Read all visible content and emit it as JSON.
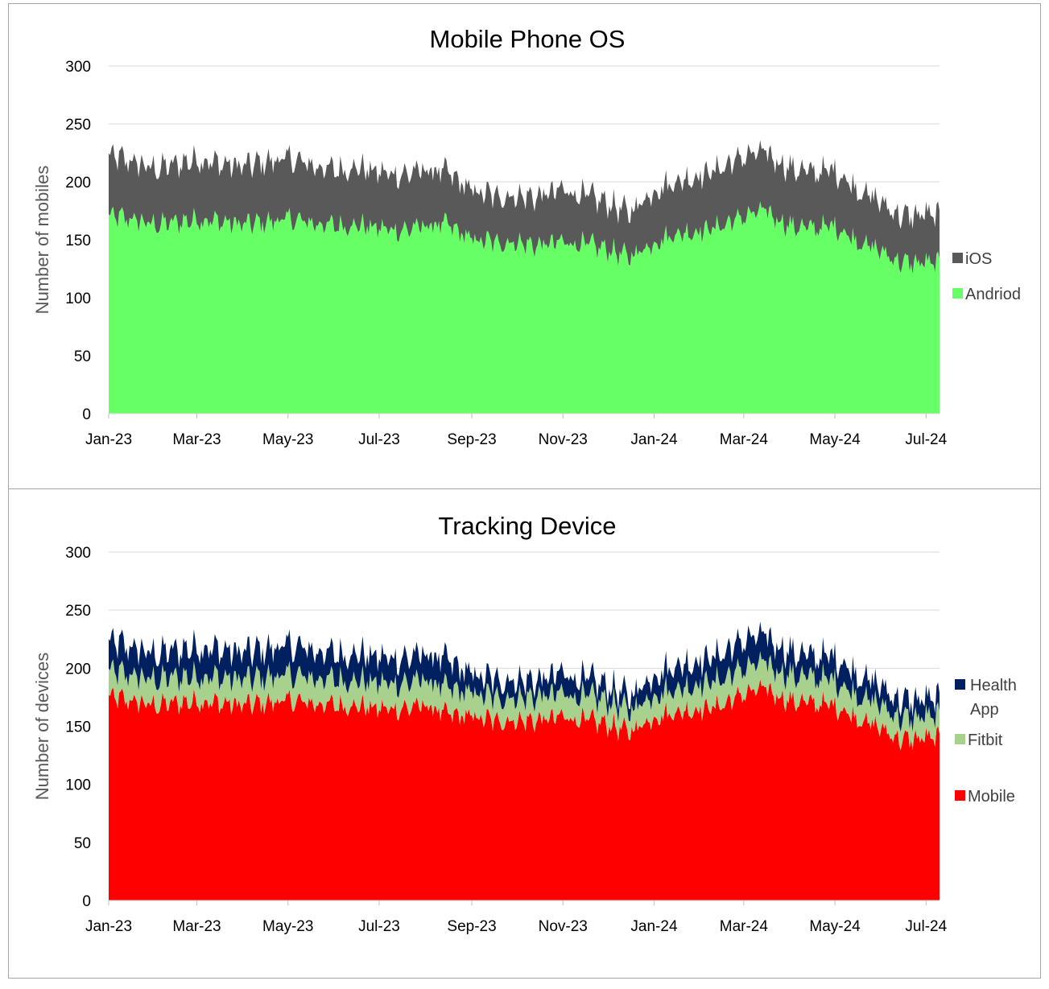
{
  "chart_data": [
    {
      "type": "area",
      "stacked": true,
      "title": "Mobile Phone OS",
      "xlabel": "",
      "ylabel": "Number of mobiles",
      "ylim": [
        0,
        300
      ],
      "yticks": [
        0,
        50,
        100,
        150,
        200,
        250,
        300
      ],
      "xlim": [
        "2023-01-01",
        "2024-07-10"
      ],
      "xticks": [
        "Jan-23",
        "Mar-23",
        "May-23",
        "Jul-23",
        "Sep-23",
        "Nov-23",
        "Jan-24",
        "Mar-24",
        "May-24",
        "Jul-24"
      ],
      "grid": true,
      "legend": "right",
      "x": [
        "2023-01-01",
        "2023-01-15",
        "2023-02-01",
        "2023-02-15",
        "2023-03-01",
        "2023-03-15",
        "2023-04-01",
        "2023-04-15",
        "2023-05-01",
        "2023-05-15",
        "2023-06-01",
        "2023-06-15",
        "2023-07-01",
        "2023-07-15",
        "2023-08-01",
        "2023-08-15",
        "2023-09-01",
        "2023-09-15",
        "2023-10-01",
        "2023-10-15",
        "2023-11-01",
        "2023-11-15",
        "2023-12-01",
        "2023-12-15",
        "2024-01-01",
        "2024-01-15",
        "2024-02-01",
        "2024-02-15",
        "2024-03-01",
        "2024-03-15",
        "2024-04-01",
        "2024-04-15",
        "2024-05-01",
        "2024-05-15",
        "2024-06-01",
        "2024-06-15",
        "2024-07-01",
        "2024-07-10"
      ],
      "series": [
        {
          "name": "Andriod",
          "color": "#66ff66",
          "values": [
            170,
            168,
            163,
            165,
            168,
            166,
            163,
            165,
            168,
            165,
            162,
            163,
            160,
            158,
            162,
            163,
            150,
            148,
            148,
            145,
            148,
            146,
            142,
            135,
            148,
            155,
            158,
            162,
            170,
            175,
            162,
            160,
            162,
            150,
            140,
            130,
            130,
            128
          ]
        },
        {
          "name": "iOS",
          "color": "#595959",
          "values": [
            52,
            50,
            48,
            50,
            52,
            50,
            50,
            52,
            52,
            50,
            48,
            50,
            48,
            48,
            48,
            45,
            42,
            40,
            40,
            42,
            45,
            42,
            40,
            38,
            45,
            45,
            48,
            50,
            52,
            50,
            50,
            48,
            48,
            45,
            42,
            40,
            42,
            40
          ]
        }
      ]
    },
    {
      "type": "area",
      "stacked": true,
      "title": "Tracking Device",
      "xlabel": "",
      "ylabel": "Number of devices",
      "ylim": [
        0,
        300
      ],
      "yticks": [
        0,
        50,
        100,
        150,
        200,
        250,
        300
      ],
      "xlim": [
        "2023-01-01",
        "2024-07-10"
      ],
      "xticks": [
        "Jan-23",
        "Mar-23",
        "May-23",
        "Jul-23",
        "Sep-23",
        "Nov-23",
        "Jan-24",
        "Mar-24",
        "May-24",
        "Jul-24"
      ],
      "grid": true,
      "legend": "right",
      "x": [
        "2023-01-01",
        "2023-01-15",
        "2023-02-01",
        "2023-02-15",
        "2023-03-01",
        "2023-03-15",
        "2023-04-01",
        "2023-04-15",
        "2023-05-01",
        "2023-05-15",
        "2023-06-01",
        "2023-06-15",
        "2023-07-01",
        "2023-07-15",
        "2023-08-01",
        "2023-08-15",
        "2023-09-01",
        "2023-09-15",
        "2023-10-01",
        "2023-10-15",
        "2023-11-01",
        "2023-11-15",
        "2023-12-01",
        "2023-12-15",
        "2024-01-01",
        "2024-01-15",
        "2024-02-01",
        "2024-02-15",
        "2024-03-01",
        "2024-03-15",
        "2024-04-01",
        "2024-04-15",
        "2024-05-01",
        "2024-05-15",
        "2024-06-01",
        "2024-06-15",
        "2024-07-01",
        "2024-07-10"
      ],
      "series": [
        {
          "name": "Mobile",
          "color": "#ff0000",
          "values": [
            175,
            172,
            168,
            170,
            172,
            170,
            168,
            170,
            172,
            170,
            168,
            168,
            165,
            165,
            168,
            160,
            158,
            155,
            155,
            155,
            158,
            155,
            152,
            145,
            158,
            162,
            165,
            168,
            178,
            182,
            172,
            170,
            168,
            158,
            148,
            138,
            140,
            138
          ]
        },
        {
          "name": "Fitbit",
          "color": "#a9d18e",
          "values": [
            22,
            22,
            22,
            22,
            22,
            22,
            22,
            22,
            22,
            22,
            22,
            22,
            22,
            22,
            22,
            22,
            20,
            20,
            20,
            20,
            20,
            20,
            20,
            18,
            20,
            20,
            22,
            22,
            22,
            22,
            22,
            22,
            22,
            20,
            20,
            18,
            18,
            18
          ]
        },
        {
          "name": "Health App",
          "color": "#002060",
          "values": [
            25,
            24,
            22,
            23,
            25,
            24,
            23,
            24,
            25,
            24,
            22,
            23,
            22,
            21,
            22,
            24,
            16,
            15,
            15,
            14,
            17,
            15,
            13,
            12,
            17,
            20,
            20,
            22,
            24,
            23,
            20,
            18,
            20,
            18,
            16,
            15,
            15,
            14
          ]
        }
      ]
    }
  ]
}
